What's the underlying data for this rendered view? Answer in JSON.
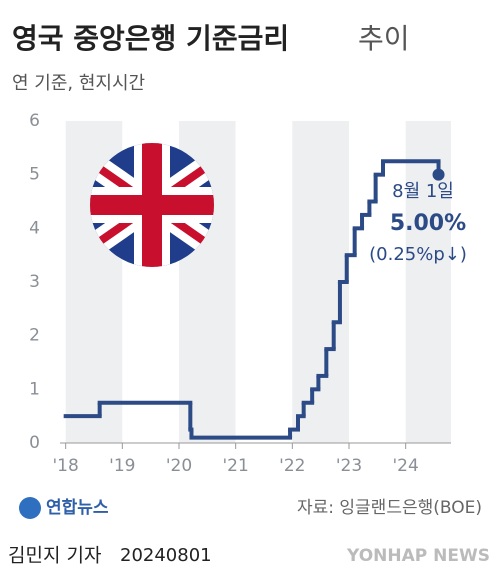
{
  "chart_data": {
    "type": "step-line",
    "title": "영국 중앙은행 기준금리",
    "title_suffix": "추이",
    "subtitle": "연 기준, 현지시간",
    "x": [
      2018.0,
      2018.6,
      2020.2,
      2020.22,
      2021.96,
      2022.1,
      2022.2,
      2022.35,
      2022.46,
      2022.6,
      2022.73,
      2022.84,
      2022.96,
      2023.1,
      2023.23,
      2023.36,
      2023.47,
      2023.6,
      2024.58
    ],
    "series": [
      {
        "name": "기준금리",
        "color": "#2b4a86",
        "values": [
          0.5,
          0.75,
          0.25,
          0.1,
          0.25,
          0.5,
          0.75,
          1.0,
          1.25,
          1.75,
          2.25,
          3.0,
          3.5,
          4.0,
          4.25,
          4.5,
          5.0,
          5.25,
          5.0
        ]
      }
    ],
    "xlim": [
      2017.9,
      2024.8
    ],
    "xticks": [
      {
        "value": 2018,
        "label": "'18"
      },
      {
        "value": 2019,
        "label": "'19"
      },
      {
        "value": 2020,
        "label": "'20"
      },
      {
        "value": 2021,
        "label": "'21"
      },
      {
        "value": 2022,
        "label": "'22"
      },
      {
        "value": 2023,
        "label": "'23"
      },
      {
        "value": 2024,
        "label": "'24"
      }
    ],
    "ylim": [
      0,
      6
    ],
    "yticks": [
      0,
      1,
      2,
      3,
      4,
      5,
      6
    ],
    "annotation": {
      "date": "8월 1일",
      "value": "5.00%",
      "change": "(0.25%p↓)"
    },
    "source": "자료: 잉글랜드은행(BOE)"
  },
  "footer": {
    "reporter": "김민지 기자",
    "date": "20240801",
    "logo": "연합뉴스",
    "brand": "YONHAP NEWS"
  }
}
